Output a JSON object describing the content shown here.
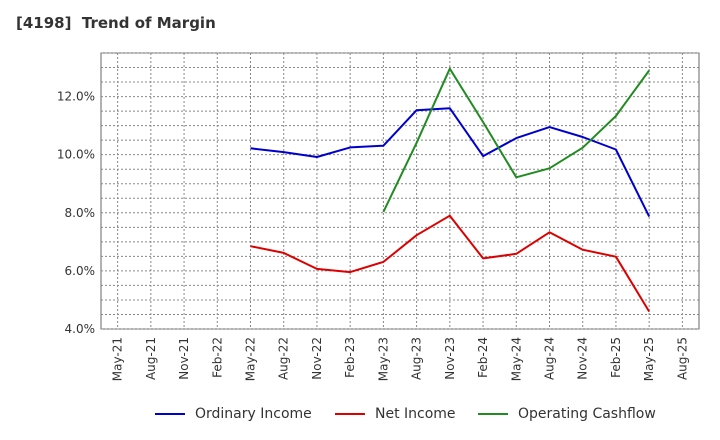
{
  "chart_data": {
    "type": "line",
    "title": "[4198]  Trend of Margin",
    "xlabel": "",
    "ylabel": "",
    "categories": [
      "May-21",
      "Aug-21",
      "Nov-21",
      "Feb-22",
      "May-22",
      "Aug-22",
      "Nov-22",
      "Feb-23",
      "May-23",
      "Aug-23",
      "Nov-23",
      "Feb-24",
      "May-24",
      "Aug-24",
      "Nov-24",
      "Feb-25",
      "May-25",
      "Aug-25"
    ],
    "ylim": [
      4.0,
      13.5
    ],
    "yticks": [
      4.0,
      6.0,
      8.0,
      10.0,
      12.0
    ],
    "ytick_format": "%",
    "grid": true,
    "legend_position": "bottom",
    "series": [
      {
        "name": "Ordinary Income",
        "color": "#0000cc",
        "values": [
          null,
          null,
          null,
          null,
          10.22,
          10.09,
          9.92,
          10.25,
          10.31,
          11.53,
          11.6,
          9.95,
          10.57,
          10.95,
          10.61,
          10.18,
          7.87,
          null
        ]
      },
      {
        "name": "Net Income",
        "color": "#dd0000",
        "values": [
          null,
          null,
          null,
          null,
          6.85,
          6.62,
          6.07,
          5.96,
          6.31,
          7.23,
          7.9,
          6.43,
          6.59,
          7.33,
          6.73,
          6.49,
          4.6,
          null
        ]
      },
      {
        "name": "Operating Cashflow",
        "color": "#228b22",
        "values": [
          null,
          null,
          null,
          null,
          null,
          null,
          null,
          null,
          8.03,
          10.41,
          12.96,
          11.12,
          9.22,
          9.53,
          10.24,
          11.33,
          12.9,
          null
        ]
      }
    ]
  }
}
